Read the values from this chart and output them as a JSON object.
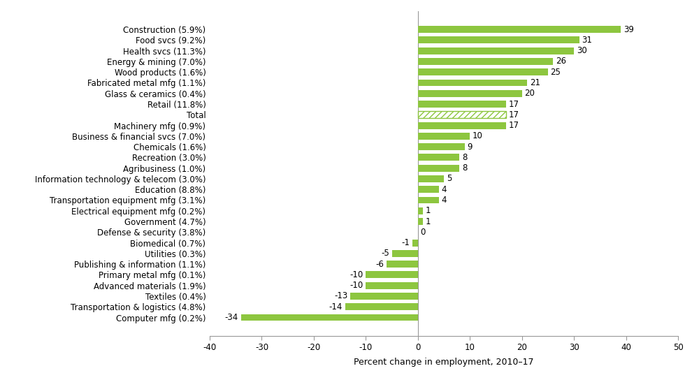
{
  "categories": [
    "Construction (5.9%)",
    "Food svcs (9.2%)",
    "Health svcs (11.3%)",
    "Energy & mining (7.0%)",
    "Wood products (1.6%)",
    "Fabricated metal mfg (1.1%)",
    "Glass & ceramics (0.4%)",
    "Retail (11.8%)",
    "Total",
    "Machinery mfg (0.9%)",
    "Business & financial svcs (7.0%)",
    "Chemicals (1.6%)",
    "Recreation (3.0%)",
    "Agribusiness (1.0%)",
    "Information technology & telecom (3.0%)",
    "Education (8.8%)",
    "Transportation equipment mfg (3.1%)",
    "Electrical equipment mfg (0.2%)",
    "Government (4.7%)",
    "Defense & security (3.8%)",
    "Biomedical (0.7%)",
    "Utilities (0.3%)",
    "Publishing & information (1.1%)",
    "Primary metal mfg (0.1%)",
    "Advanced materials (1.9%)",
    "Textiles (0.4%)",
    "Transportation & logistics (4.8%)",
    "Computer mfg (0.2%)"
  ],
  "values": [
    39,
    31,
    30,
    26,
    25,
    21,
    20,
    17,
    17,
    17,
    10,
    9,
    8,
    8,
    5,
    4,
    4,
    1,
    1,
    0,
    -1,
    -5,
    -6,
    -10,
    -10,
    -13,
    -14,
    -34
  ],
  "bar_color": "#8dc63f",
  "hatch_index": 8,
  "xlim": [
    -40,
    50
  ],
  "xticks": [
    -40,
    -30,
    -20,
    -10,
    0,
    10,
    20,
    30,
    40,
    50
  ],
  "xlabel": "Percent change in employment, 2010–17",
  "background_color": "#ffffff",
  "label_fontsize": 8.5,
  "xlabel_fontsize": 9
}
